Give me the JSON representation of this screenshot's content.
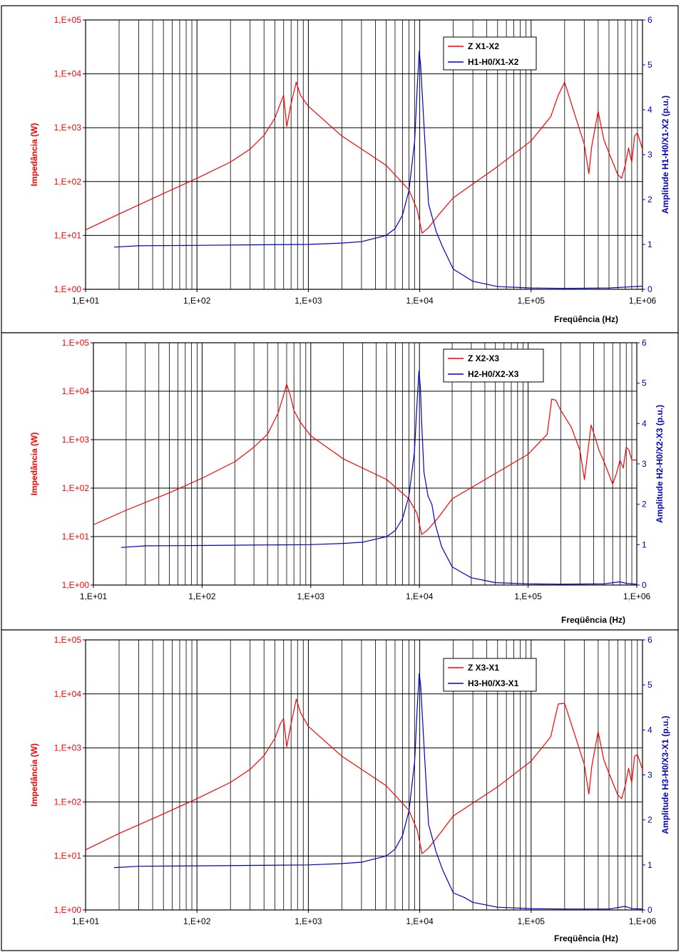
{
  "colors": {
    "impedance": "#ff0000",
    "amplitude": "#0000cc",
    "grid": "#000000",
    "background": "#ffffff"
  },
  "chart_data": [
    {
      "type": "line",
      "xlabel": "Freqüência (Hz)",
      "ylabel": "Impedância (W)",
      "y2label": "Amplitude H1-H0/X1-X2 (p.u.)",
      "xscale": "log",
      "xlim": [
        10,
        1000000
      ],
      "yscale": "log",
      "ylim": [
        1,
        100000
      ],
      "y2lim": [
        0,
        6
      ],
      "x_tick_labels": [
        "1,E+01",
        "1,E+02",
        "1,E+03",
        "1,E+04",
        "1,E+05",
        "1,E+06"
      ],
      "y_tick_labels": [
        "1,E+00",
        "1,E+01",
        "1,E+02",
        "1,E+03",
        "1,E+04",
        "1,E+05"
      ],
      "y2_tick_labels": [
        "0",
        "1",
        "2",
        "3",
        "4",
        "5",
        "6"
      ],
      "grid": true,
      "legend_position": "top-right",
      "series": [
        {
          "name": "Z X1-X2",
          "axis": "left",
          "x": [
            10,
            20,
            50,
            100,
            200,
            300,
            400,
            500,
            560,
            600,
            640,
            700,
            780,
            850,
            1000,
            2000,
            5000,
            8000,
            9500,
            10500,
            12000,
            15000,
            20000,
            50000,
            100000,
            150000,
            175000,
            200000,
            250000,
            300000,
            330000,
            350000,
            400000,
            450000,
            500000,
            600000,
            650000,
            700000,
            750000,
            800000,
            850000,
            900000,
            1000000
          ],
          "y": [
            12.7,
            25,
            60,
            115,
            230,
            400,
            720,
            1500,
            2800,
            4000,
            1050,
            2800,
            7000,
            4000,
            2500,
            700,
            200,
            70,
            30,
            11,
            14,
            25,
            50,
            190,
            570,
            1600,
            4000,
            7000,
            1600,
            500,
            140,
            450,
            2000,
            600,
            340,
            135,
            115,
            200,
            420,
            230,
            700,
            800,
            400
          ]
        },
        {
          "name": "H1-H0/X1-X2",
          "axis": "right",
          "x": [
            18,
            30,
            100,
            300,
            1000,
            2000,
            3000,
            5000,
            6000,
            7000,
            8000,
            9000,
            9500,
            9900,
            10200,
            11000,
            12000,
            14000,
            16000,
            20000,
            25000,
            30000,
            50000,
            100000,
            200000,
            500000,
            1000000
          ],
          "y": [
            0.94,
            0.97,
            0.98,
            0.99,
            1.0,
            1.03,
            1.06,
            1.2,
            1.35,
            1.65,
            2.2,
            3.3,
            4.5,
            5.3,
            5.0,
            3.5,
            1.9,
            1.3,
            0.95,
            0.45,
            0.3,
            0.18,
            0.06,
            0.03,
            0.02,
            0.03,
            0.07
          ]
        }
      ]
    },
    {
      "type": "line",
      "xlabel": "Freqüência (Hz)",
      "ylabel": "Impedância (W)",
      "y2label": "Amplitude H2-H0/X2-X3 (p.u.)",
      "xscale": "log",
      "xlim": [
        10,
        1000000
      ],
      "yscale": "log",
      "ylim": [
        1,
        100000
      ],
      "y2lim": [
        0,
        6
      ],
      "x_tick_labels": [
        "1,E+01",
        "1,E+02",
        "1,E+03",
        "1,E+04",
        "1,E+05",
        "1,E+06"
      ],
      "y_tick_labels": [
        "1,E+00",
        "1,E+01",
        "1,E+02",
        "1,E+03",
        "1,E+04",
        "1,E+05"
      ],
      "y2_tick_labels": [
        "0",
        "1",
        "2",
        "3",
        "4",
        "5",
        "6"
      ],
      "grid": true,
      "legend_position": "top-right",
      "series": [
        {
          "name": "Z X2-X3",
          "axis": "left",
          "x": [
            10,
            20,
            50,
            100,
            200,
            300,
            400,
            500,
            560,
            600,
            650,
            700,
            800,
            1000,
            2000,
            5000,
            8000,
            9500,
            10500,
            12000,
            15000,
            20000,
            50000,
            100000,
            150000,
            165000,
            180000,
            200000,
            250000,
            300000,
            330000,
            350000,
            380000,
            400000,
            450000,
            500000,
            600000,
            650000,
            700000,
            750000,
            800000,
            850000,
            900000,
            1000000
          ],
          "y": [
            17.5,
            35,
            80,
            160,
            350,
            700,
            1300,
            3500,
            8000,
            14000,
            8000,
            4000,
            2300,
            1200,
            400,
            150,
            60,
            30,
            11,
            14,
            25,
            60,
            200,
            500,
            1300,
            6900,
            6500,
            4000,
            1800,
            600,
            150,
            450,
            2000,
            1400,
            600,
            350,
            120,
            200,
            380,
            260,
            700,
            600,
            380,
            380
          ]
        },
        {
          "name": "H2-H0/X2-X3",
          "axis": "right",
          "x": [
            18,
            30,
            100,
            300,
            1000,
            2000,
            3000,
            5000,
            6000,
            7000,
            8000,
            9000,
            9500,
            9900,
            10200,
            10500,
            11000,
            12000,
            13000,
            14000,
            16000,
            20000,
            25000,
            30000,
            50000,
            100000,
            200000,
            500000,
            700000,
            800000,
            1000000
          ],
          "y": [
            0.93,
            0.97,
            0.98,
            0.99,
            1.0,
            1.03,
            1.06,
            1.2,
            1.35,
            1.65,
            2.2,
            3.3,
            4.5,
            5.3,
            4.9,
            4.0,
            2.8,
            2.2,
            2.0,
            1.5,
            0.95,
            0.45,
            0.3,
            0.18,
            0.06,
            0.03,
            0.02,
            0.03,
            0.08,
            0.04,
            0.02
          ]
        }
      ]
    },
    {
      "type": "line",
      "xlabel": "Freqüência (Hz)",
      "ylabel": "Impedância (W)",
      "y2label": "Amplitude H3-H0/X3-X1 (p.u.)",
      "xscale": "log",
      "xlim": [
        10,
        1000000
      ],
      "yscale": "log",
      "ylim": [
        1,
        100000
      ],
      "y2lim": [
        0,
        6
      ],
      "x_tick_labels": [
        "1,E+01",
        "1,E+02",
        "1,E+03",
        "1,E+04",
        "1,E+05",
        "1,E+06"
      ],
      "y_tick_labels": [
        "1,E+00",
        "1,E+01",
        "1,E+02",
        "1,E+03",
        "1,E+04",
        "1,E+05"
      ],
      "y2_tick_labels": [
        "0",
        "1",
        "2",
        "3",
        "4",
        "5",
        "6"
      ],
      "grid": true,
      "legend_position": "top-right",
      "series": [
        {
          "name": "Z X3-X1",
          "axis": "left",
          "x": [
            10,
            20,
            50,
            100,
            200,
            300,
            400,
            500,
            560,
            600,
            640,
            700,
            780,
            850,
            1000,
            2000,
            5000,
            8000,
            9500,
            10500,
            12000,
            15000,
            20000,
            50000,
            100000,
            150000,
            175000,
            200000,
            250000,
            300000,
            330000,
            350000,
            400000,
            450000,
            500000,
            600000,
            650000,
            700000,
            750000,
            800000,
            850000,
            900000,
            1000000
          ],
          "y": [
            13,
            26,
            60,
            115,
            230,
            400,
            720,
            1500,
            2800,
            3500,
            1050,
            2800,
            8000,
            4500,
            2500,
            700,
            200,
            70,
            30,
            11,
            14,
            25,
            55,
            190,
            570,
            1600,
            6500,
            6700,
            1600,
            500,
            140,
            450,
            2000,
            600,
            340,
            135,
            115,
            200,
            420,
            230,
            700,
            750,
            400
          ]
        },
        {
          "name": "H3-H0/X3-X1",
          "axis": "right",
          "x": [
            18,
            30,
            100,
            300,
            1000,
            2000,
            3000,
            5000,
            6000,
            7000,
            8000,
            9000,
            9500,
            9900,
            10200,
            11000,
            12000,
            14000,
            16000,
            20000,
            25000,
            30000,
            50000,
            100000,
            200000,
            500000,
            700000,
            800000,
            1000000
          ],
          "y": [
            0.94,
            0.97,
            0.98,
            0.99,
            1.0,
            1.03,
            1.06,
            1.2,
            1.35,
            1.65,
            2.2,
            3.3,
            4.5,
            5.25,
            5.0,
            3.5,
            1.9,
            1.3,
            0.9,
            0.38,
            0.28,
            0.17,
            0.06,
            0.03,
            0.02,
            0.02,
            0.08,
            0.03,
            0.02
          ]
        }
      ]
    }
  ]
}
